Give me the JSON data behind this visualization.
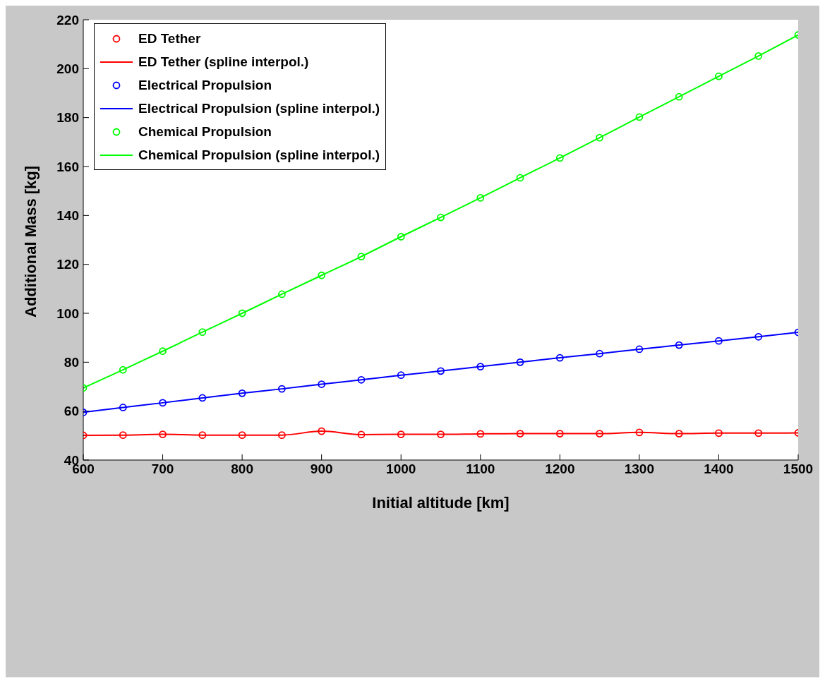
{
  "chart_data": {
    "type": "line",
    "xlabel": "Initial altitude [km]",
    "ylabel": "Additional Mass [kg]",
    "x": [
      600,
      650,
      700,
      750,
      800,
      850,
      900,
      950,
      1000,
      1050,
      1100,
      1150,
      1200,
      1250,
      1300,
      1350,
      1400,
      1450,
      1500
    ],
    "xlim": [
      600,
      1500
    ],
    "xticks": [
      600,
      700,
      800,
      900,
      1000,
      1100,
      1200,
      1300,
      1400,
      1500
    ],
    "ylim": [
      40,
      220
    ],
    "yticks": [
      40,
      60,
      80,
      100,
      120,
      140,
      160,
      180,
      200,
      220
    ],
    "legend": "top left",
    "series": [
      {
        "name": "ED Tether",
        "type": "scatter",
        "marker": "circle",
        "color": "#ff0000",
        "values": [
          50.1,
          50.2,
          50.5,
          50.2,
          50.2,
          50.2,
          51.8,
          50.4,
          50.5,
          50.5,
          50.7,
          50.8,
          50.8,
          50.8,
          51.3,
          50.8,
          51.0,
          51.0,
          51.1
        ]
      },
      {
        "name": "ED Tether (spline interpol.)",
        "marker": "none",
        "color": "#ff0000",
        "values": [
          50.1,
          50.2,
          50.5,
          50.2,
          50.2,
          50.2,
          51.8,
          50.4,
          50.5,
          50.5,
          50.7,
          50.8,
          50.8,
          50.8,
          51.3,
          50.8,
          51.0,
          51.0,
          51.1
        ]
      },
      {
        "name": "Electrical Propulsion",
        "type": "scatter",
        "marker": "circle",
        "color": "#0000ff",
        "values": [
          59.5,
          61.5,
          63.4,
          65.4,
          67.3,
          69.1,
          71.0,
          72.8,
          74.7,
          76.4,
          78.2,
          80.0,
          81.8,
          83.5,
          85.3,
          87.0,
          88.7,
          90.4,
          92.2
        ]
      },
      {
        "name": "Electrical Propulsion (spline interpol.)",
        "marker": "none",
        "color": "#0000ff",
        "values": [
          59.5,
          61.5,
          63.4,
          65.4,
          67.3,
          69.1,
          71.0,
          72.8,
          74.7,
          76.4,
          78.2,
          80.0,
          81.8,
          83.5,
          85.3,
          87.0,
          88.7,
          90.4,
          92.2
        ]
      },
      {
        "name": "Chemical Propulsion",
        "type": "scatter",
        "marker": "circle",
        "color": "#00ff00",
        "values": [
          69.5,
          76.9,
          84.5,
          92.3,
          100.0,
          107.8,
          115.5,
          123.2,
          131.3,
          139.2,
          147.2,
          155.4,
          163.5,
          171.8,
          180.2,
          188.5,
          196.9,
          205.2,
          213.8
        ]
      },
      {
        "name": "Chemical Propulsion (spline interpol.)",
        "marker": "none",
        "color": "#00ff00",
        "values": [
          69.5,
          76.9,
          84.5,
          92.3,
          100.0,
          107.8,
          115.5,
          123.2,
          131.3,
          139.2,
          147.2,
          155.4,
          163.5,
          171.8,
          180.2,
          188.5,
          196.9,
          205.2,
          213.8
        ]
      }
    ]
  }
}
